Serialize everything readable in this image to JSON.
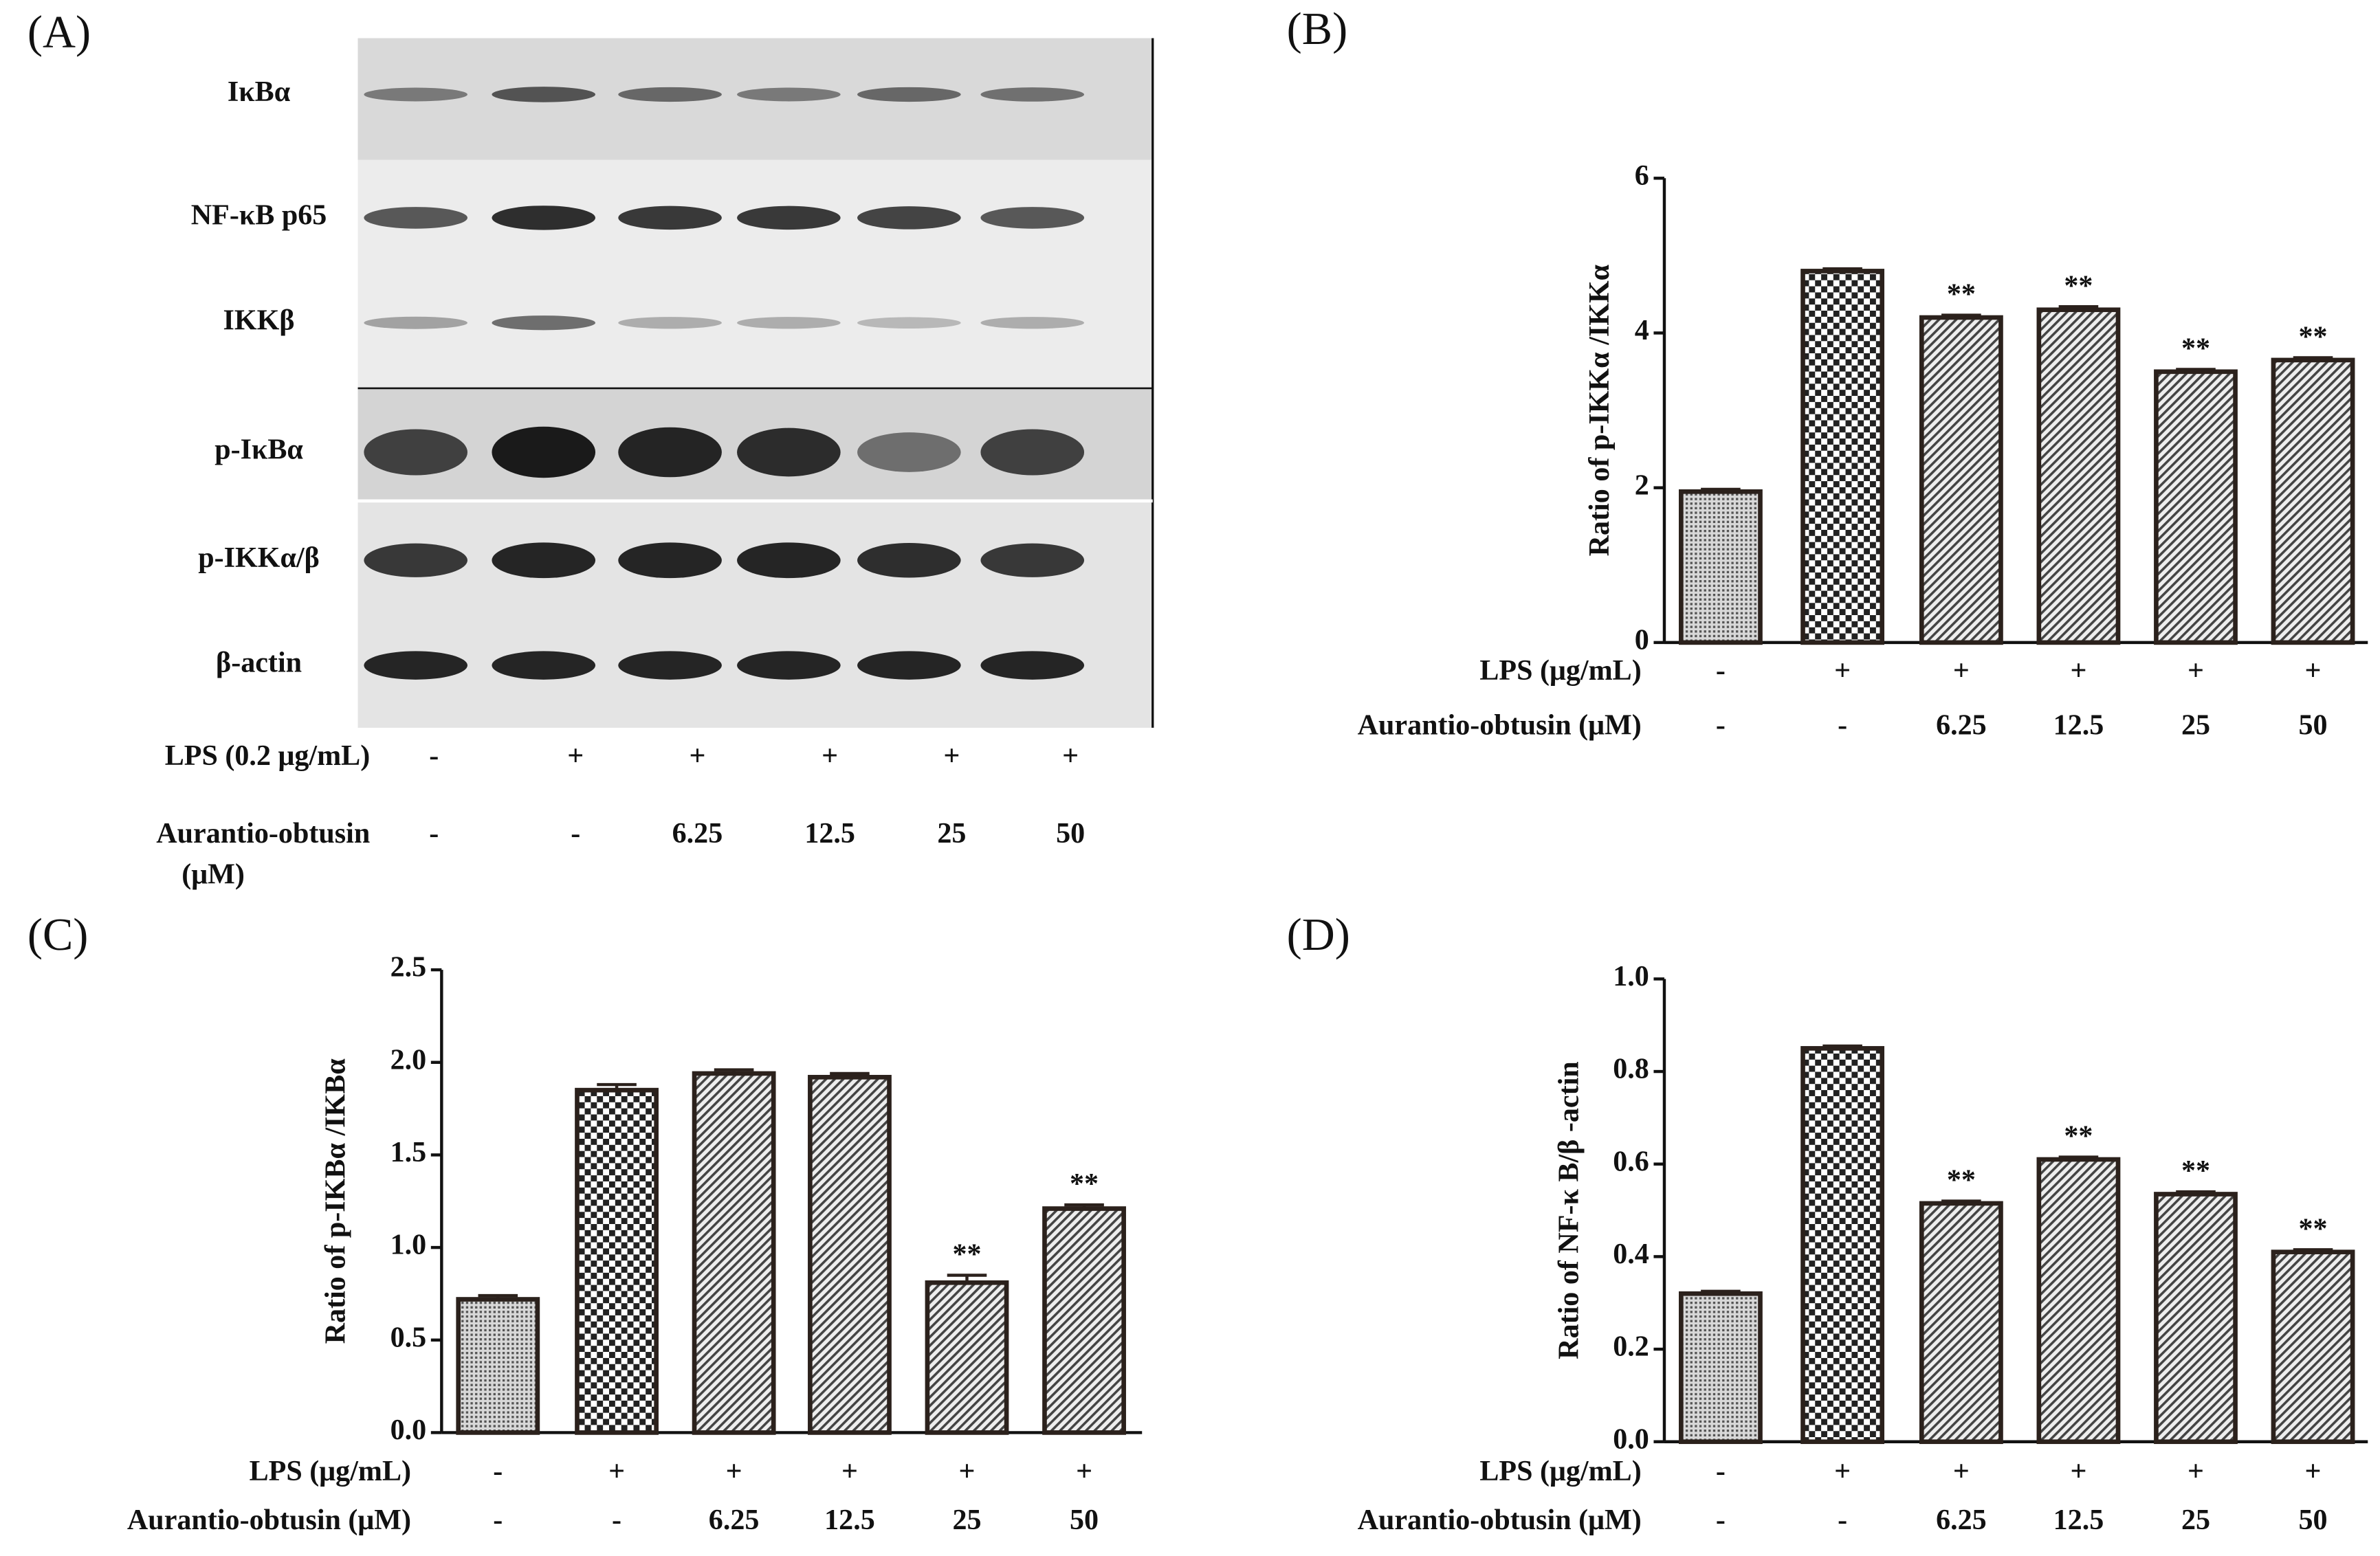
{
  "blot": {
    "label": "(A)",
    "bands": [
      "IκBα",
      "NF-κB p65",
      "IKKβ",
      "p-IκBα",
      "p-IKKα/β",
      "β-actin"
    ],
    "rows": [
      {
        "label_lines": [
          "LPS (0.2 μg/mL)"
        ],
        "values": [
          "-",
          "+",
          "+",
          "+",
          "+",
          "+"
        ]
      },
      {
        "label_lines": [
          "Aurantio-obtusin",
          "(μM)"
        ],
        "values": [
          "-",
          "-",
          "6.25",
          "12.5",
          "25",
          "50"
        ]
      }
    ]
  },
  "chart_data": [
    {
      "type": "bar",
      "panel": "(B)",
      "ylabel": "Ratio of p-IKKα /IKKα",
      "rows": [
        {
          "label": "LPS (μg/mL)",
          "values": [
            "-",
            "+",
            "+",
            "+",
            "+",
            "+"
          ]
        },
        {
          "label": "Aurantio-obtusin (μM)",
          "values": [
            "-",
            "-",
            "6.25",
            "12.5",
            "25",
            "50"
          ]
        }
      ],
      "values": [
        1.95,
        4.8,
        4.2,
        4.3,
        3.5,
        3.65
      ],
      "errors": [
        0.03,
        0.03,
        0.03,
        0.04,
        0.03,
        0.03
      ],
      "significance": [
        null,
        null,
        "**",
        "**",
        "**",
        "**"
      ],
      "bar_patterns": [
        "dots",
        "checker",
        "hatch",
        "hatch",
        "hatch",
        "hatch"
      ],
      "color": "#2b211c",
      "ylim": [
        0,
        6
      ],
      "yticks": [
        0,
        2,
        4,
        6
      ]
    },
    {
      "type": "bar",
      "panel": "(C)",
      "ylabel": "Ratio of p-IKBα /IKBα",
      "rows": [
        {
          "label": "LPS (μg/mL)",
          "values": [
            "-",
            "+",
            "+",
            "+",
            "+",
            "+"
          ]
        },
        {
          "label": "Aurantio-obtusin (μM)",
          "values": [
            "-",
            "-",
            "6.25",
            "12.5",
            "25",
            "50"
          ]
        }
      ],
      "values": [
        0.72,
        1.85,
        1.94,
        1.92,
        0.81,
        1.21
      ],
      "errors": [
        0.02,
        0.03,
        0.02,
        0.02,
        0.04,
        0.02
      ],
      "significance": [
        null,
        null,
        null,
        null,
        "**",
        "**"
      ],
      "bar_patterns": [
        "dots",
        "checker",
        "hatch",
        "hatch",
        "hatch",
        "hatch"
      ],
      "color": "#2b211c",
      "ylim": [
        0,
        2.5
      ],
      "yticks": [
        {
          "value": 0,
          "label": "0.0"
        },
        0.5,
        {
          "value": 1,
          "label": "1.0"
        },
        1.5,
        {
          "value": 2,
          "label": "2.0"
        },
        2.5
      ]
    },
    {
      "type": "bar",
      "panel": "(D)",
      "ylabel": "Ratio of NF-κ B/β -actin",
      "rows": [
        {
          "label": "LPS (μg/mL)",
          "values": [
            "-",
            "+",
            "+",
            "+",
            "+",
            "+"
          ]
        },
        {
          "label": "Aurantio-obtusin (μM)",
          "values": [
            "-",
            "-",
            "6.25",
            "12.5",
            "25",
            "50"
          ]
        }
      ],
      "values": [
        0.32,
        0.85,
        0.515,
        0.61,
        0.535,
        0.41
      ],
      "errors": [
        0.005,
        0.005,
        0.005,
        0.005,
        0.005,
        0.005
      ],
      "significance": [
        null,
        null,
        "**",
        "**",
        "**",
        "**"
      ],
      "bar_patterns": [
        "dots",
        "checker",
        "hatch",
        "hatch",
        "hatch",
        "hatch"
      ],
      "color": "#2b211c",
      "ylim": [
        0,
        1
      ],
      "yticks": [
        {
          "value": 0,
          "label": "0.0"
        },
        0.2,
        0.4,
        0.6,
        0.8,
        {
          "value": 1,
          "label": "1.0"
        }
      ]
    }
  ]
}
